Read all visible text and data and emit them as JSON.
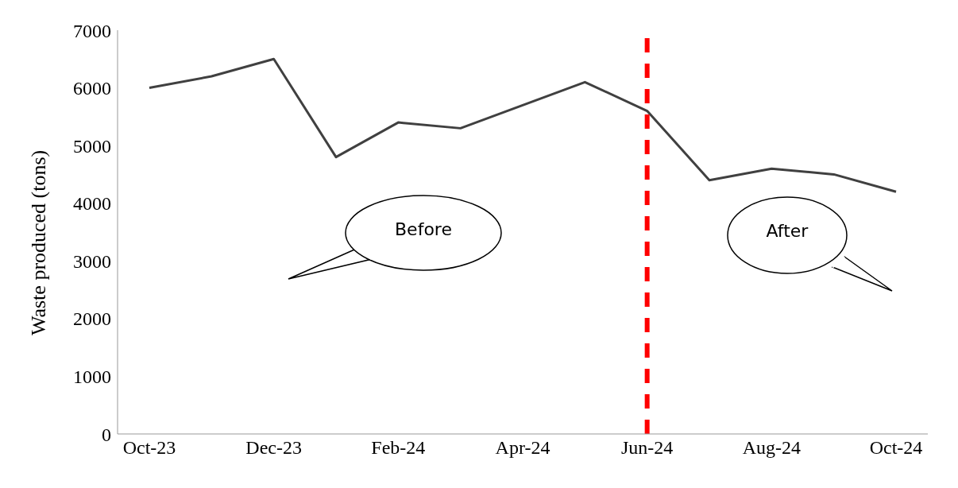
{
  "chart_data": {
    "type": "line",
    "ylabel": "Waste produced (tons)",
    "categories": [
      "Oct-23",
      null,
      "Dec-23",
      null,
      "Feb-24",
      null,
      "Apr-24",
      null,
      "Jun-24",
      null,
      "Aug-24",
      null,
      "Oct-24"
    ],
    "series": [
      {
        "color": "#404040",
        "values": [
          6000,
          6200,
          6500,
          4800,
          5400,
          5300,
          5700,
          6100,
          5600,
          4400,
          4600,
          4500,
          4200
        ]
      }
    ],
    "ylim": [
      0,
      7000
    ],
    "yticks": [
      0,
      1000,
      2000,
      3000,
      4000,
      5000,
      6000,
      7000
    ],
    "ref_lines": [
      {
        "axis": "x",
        "value": "Jun-24",
        "color": "#ff0000",
        "line_style": "dashed"
      }
    ],
    "annotations": [
      "Before",
      "After"
    ],
    "grid": false,
    "legend": false,
    "marker": "none",
    "line_style": "solid"
  }
}
